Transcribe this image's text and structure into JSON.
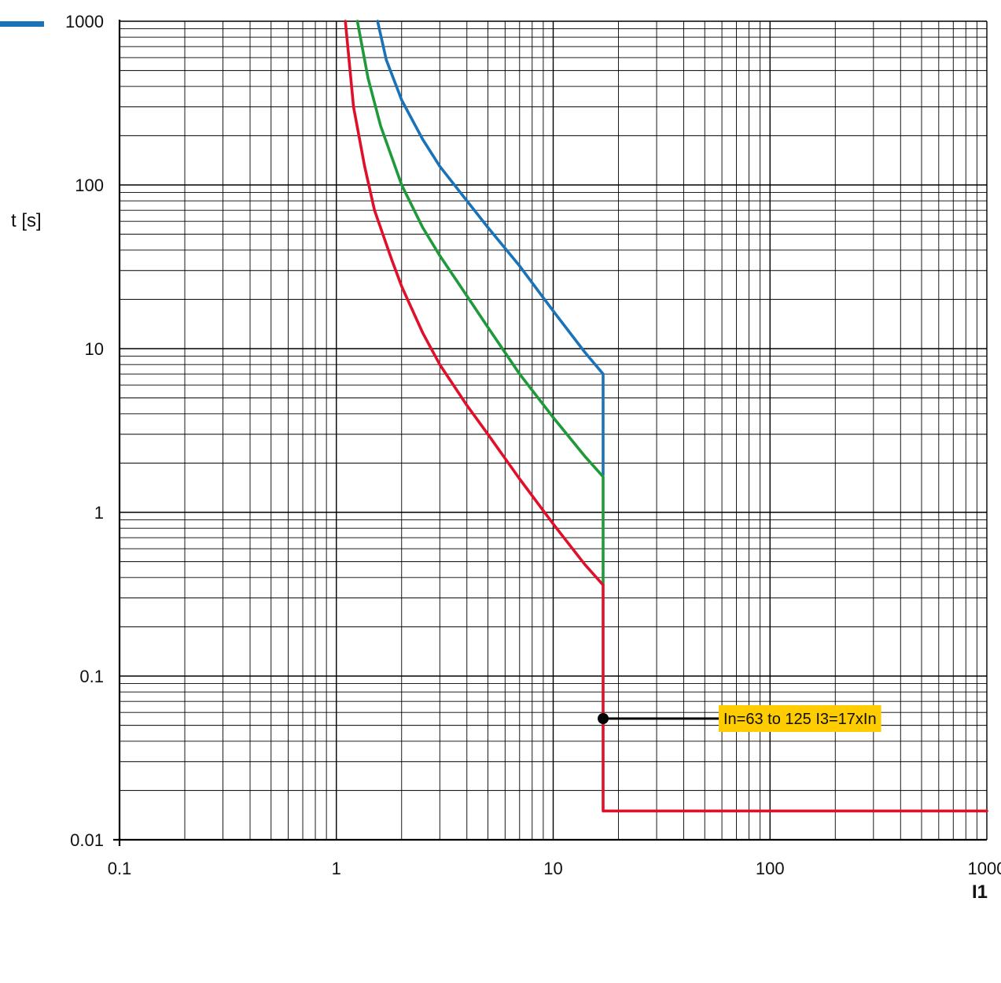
{
  "chart_data": {
    "type": "line",
    "xscale": "log",
    "yscale": "log",
    "xlim": [
      0.1,
      1000
    ],
    "ylim": [
      0.01,
      1000
    ],
    "grid": true,
    "xlabel": "I1",
    "ylabel": "t [s]",
    "x_ticks": [
      "0.1",
      "1",
      "10",
      "100",
      "1000"
    ],
    "y_ticks": [
      "1000",
      "100",
      "10",
      "1",
      "0.1",
      "0.01"
    ],
    "colors": {
      "blue": "#1a73b8",
      "green": "#1f9a3a",
      "red": "#e0102a",
      "annotation_bg": "#ffcc00"
    },
    "series": [
      {
        "color": "#1a73b8",
        "points": [
          [
            1.55,
            1000
          ],
          [
            1.7,
            580
          ],
          [
            2.0,
            330
          ],
          [
            2.5,
            190
          ],
          [
            3.0,
            130
          ],
          [
            4.0,
            80
          ],
          [
            5.0,
            55
          ],
          [
            7.0,
            32
          ],
          [
            10.0,
            17
          ],
          [
            14.0,
            9.5
          ],
          [
            17.0,
            7.0
          ],
          [
            17.0,
            1.7
          ]
        ]
      },
      {
        "color": "#1f9a3a",
        "points": [
          [
            1.25,
            1000
          ],
          [
            1.4,
            450
          ],
          [
            1.6,
            230
          ],
          [
            2.0,
            100
          ],
          [
            2.5,
            55
          ],
          [
            3.0,
            37
          ],
          [
            4.0,
            21
          ],
          [
            5.0,
            13.5
          ],
          [
            7.0,
            7.0
          ],
          [
            10.0,
            3.8
          ],
          [
            14.0,
            2.2
          ],
          [
            17.0,
            1.65
          ],
          [
            17.0,
            0.36
          ]
        ]
      },
      {
        "color": "#e0102a",
        "points": [
          [
            1.1,
            1000
          ],
          [
            1.2,
            300
          ],
          [
            1.35,
            130
          ],
          [
            1.5,
            70
          ],
          [
            1.8,
            35
          ],
          [
            2.0,
            24
          ],
          [
            2.5,
            12.5
          ],
          [
            3.0,
            8.0
          ],
          [
            4.0,
            4.5
          ],
          [
            5.0,
            3.0
          ],
          [
            7.0,
            1.6
          ],
          [
            10.0,
            0.85
          ],
          [
            14.0,
            0.48
          ],
          [
            17.0,
            0.36
          ],
          [
            17.0,
            0.015
          ],
          [
            1000,
            0.015
          ]
        ]
      }
    ],
    "annotation": {
      "text": "In=63 to 125 I3=17xIn",
      "point": [
        17.0,
        0.055
      ],
      "label_at": [
        58.0,
        0.055
      ]
    }
  }
}
